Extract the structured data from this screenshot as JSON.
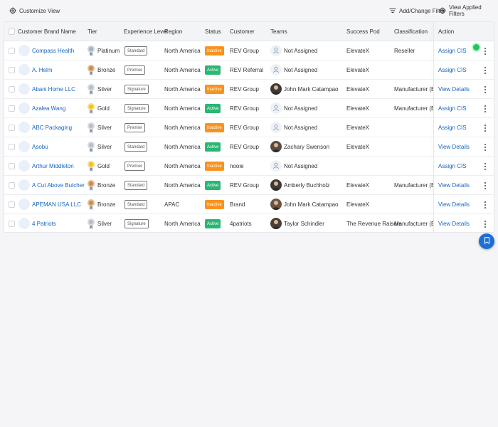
{
  "toolbar": {
    "customize_label": "Customize View",
    "add_filter_label": "Add/Change Filter",
    "view_filters_label": "View Applied Filters"
  },
  "table": {
    "headers": {
      "brand": "Customer Brand Name",
      "tier": "Tier",
      "experience": "Experience Level",
      "region": "Region",
      "status": "Status",
      "customer": "Customer",
      "teams": "Teams",
      "pod": "Success Pod",
      "classification": "Classification",
      "action": "Action"
    },
    "rows": [
      {
        "brand": "Compass Health",
        "tier": "Platinum",
        "experience": "Standard",
        "region": "North America",
        "status": "Inactive",
        "customer": "REV Group",
        "team": "Not Assigned",
        "pod": "ElevateX",
        "classification": "Reseller",
        "action": "Assign CIS"
      },
      {
        "brand": "A. Helm",
        "tier": "Bronze",
        "experience": "Premier",
        "region": "North America",
        "status": "Active",
        "customer": "REV Referral",
        "team": "Not Assigned",
        "pod": "ElevateX",
        "classification": "",
        "action": "Assign CIS"
      },
      {
        "brand": "Abani Home LLC",
        "tier": "Silver",
        "experience": "Signature",
        "region": "North America",
        "status": "Inactive",
        "customer": "REV Group",
        "team": "John Mark Catampao",
        "pod": "ElevateX",
        "classification": "Manufacturer (Brand)",
        "action": "View Details"
      },
      {
        "brand": "Azalea Wang",
        "tier": "Gold",
        "experience": "Signature",
        "region": "North America",
        "status": "Active",
        "customer": "REV Group",
        "team": "Not Assigned",
        "pod": "ElevateX",
        "classification": "Manufacturer (Brand)",
        "action": "Assign CIS"
      },
      {
        "brand": "ABC Packaging",
        "tier": "Silver",
        "experience": "Premier",
        "region": "North America",
        "status": "Inactive",
        "customer": "REV Group",
        "team": "Not Assigned",
        "pod": "ElevateX",
        "classification": "",
        "action": "Assign CIS"
      },
      {
        "brand": "Asobu",
        "tier": "Silver",
        "experience": "Standard",
        "region": "North America",
        "status": "Active",
        "customer": "REV Group",
        "team": "Zachary Swenson",
        "pod": "ElevateX",
        "classification": "",
        "action": "View Details"
      },
      {
        "brand": "Arthur Middleton",
        "tier": "Gold",
        "experience": "Premier",
        "region": "North America",
        "status": "Inactive",
        "customer": "nooie",
        "team": "Not Assigned",
        "pod": "",
        "classification": "",
        "action": "Assign CIS"
      },
      {
        "brand": "A Cut Above Butcher",
        "tier": "Bronze",
        "experience": "Standard",
        "region": "North America",
        "status": "Active",
        "customer": "REV Group",
        "team": "Amberly Buchholz",
        "pod": "ElevateX",
        "classification": "Manufacturer (Brand)",
        "action": "View Details"
      },
      {
        "brand": "APEMAN USA LLC",
        "tier": "Bronze",
        "experience": "Standard",
        "region": "APAC",
        "status": "Inactive",
        "customer": "Brand",
        "team": "John Mark Catampao",
        "pod": "ElevateX",
        "classification": "",
        "action": "View Details"
      },
      {
        "brand": "4 Patriots",
        "tier": "Silver",
        "experience": "Signature",
        "region": "North America",
        "status": "Active",
        "customer": "4patriots",
        "team": "Taylor Schindler",
        "pod": "The Revenue Raisers",
        "classification": "Manufacturer (Brand)",
        "action": "View Details"
      }
    ]
  },
  "colors": {
    "link": "#1565c0",
    "active": "#2bb673",
    "inactive": "#f7931e",
    "platinum": "#9fb3c8",
    "bronze": "#cd8a4a",
    "silver": "#b8bec6",
    "gold": "#f2c418",
    "fab": "#1d6fd6"
  },
  "icons": {
    "customize": "gear-icon",
    "filter": "filter-lines-icon",
    "view_filters": "gear-icon",
    "fab": "bookmark-icon",
    "tier": "medal-icon"
  }
}
